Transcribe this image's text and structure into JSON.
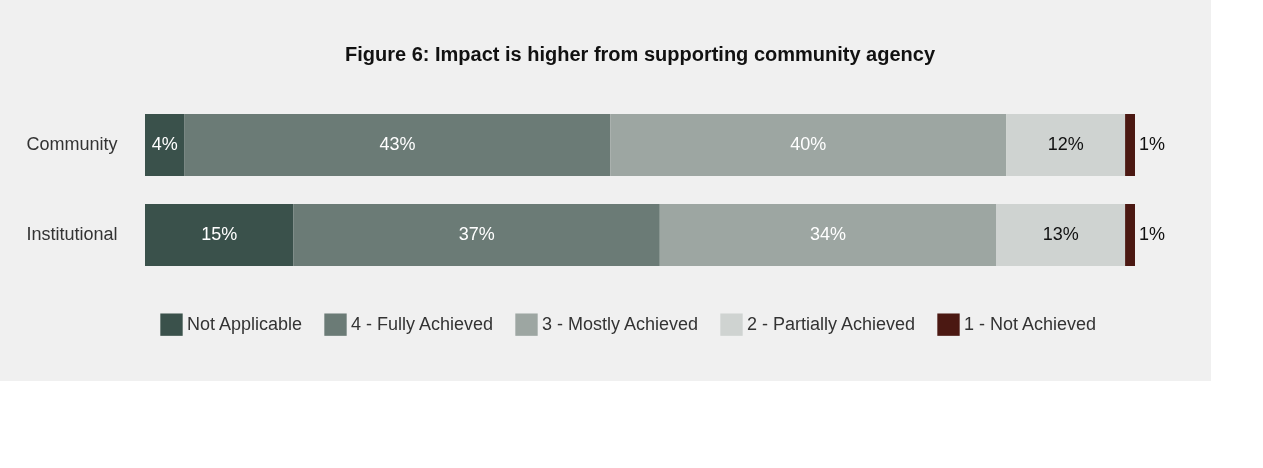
{
  "chart_data": {
    "type": "bar",
    "orientation": "horizontal",
    "stacked": true,
    "title": "Figure 6: Impact is higher from supporting community agency",
    "categories": [
      "Community",
      "Institutional"
    ],
    "series": [
      {
        "name": "Not Applicable",
        "color": "#3a514b",
        "values": [
          4,
          15
        ],
        "value_labels": [
          "4%",
          "15%"
        ]
      },
      {
        "name": "4 - Fully Achieved",
        "color": "#6b7b76",
        "values": [
          43,
          37
        ],
        "value_labels": [
          "43%",
          "37%"
        ]
      },
      {
        "name": "3 - Mostly Achieved",
        "color": "#9da6a2",
        "values": [
          40,
          34
        ],
        "value_labels": [
          "40%",
          "34%"
        ]
      },
      {
        "name": "2 - Partially Achieved",
        "color": "#cfd3d1",
        "values": [
          12,
          13
        ],
        "value_labels": [
          "12%",
          "13%"
        ]
      },
      {
        "name": "1 - Not Achieved",
        "color": "#4b1812",
        "values": [
          1,
          1
        ],
        "value_labels": [
          "1%",
          "1%"
        ]
      }
    ],
    "legend": "bottom",
    "grid": false
  }
}
